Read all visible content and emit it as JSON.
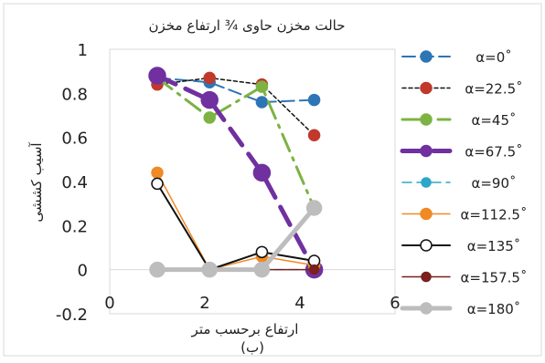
{
  "chart_data": {
    "type": "scatter",
    "title": "حالت مخزن حاوی ¾ ارتفاع مخزن",
    "xlabel": "ارتفاع برحسب متر",
    "ylabel": "آسیب کششی",
    "caption": "(ب)",
    "xlim": [
      0,
      6
    ],
    "ylim": [
      -0.2,
      1
    ],
    "xticks": [
      "0",
      "2",
      "4",
      "6"
    ],
    "yticks": [
      "-0.2",
      "0",
      "0.2",
      "0.4",
      "0.6",
      "0.8",
      "1"
    ],
    "grid": false,
    "legend_position": "right",
    "series": [
      {
        "name": "α=0˚",
        "color": "#2e75b6",
        "dash": "14,6",
        "width": 2,
        "marker_r": 6,
        "marker_fill": "#2e75b6",
        "x": [
          1.0,
          2.1,
          3.2,
          4.3
        ],
        "y": [
          0.87,
          0.85,
          0.76,
          0.77
        ]
      },
      {
        "name": "α=22.5˚",
        "color": "#c0392b",
        "line": "#111111",
        "dash": "4,3",
        "width": 1.5,
        "marker_r": 6,
        "marker_fill": "#c0392b",
        "x": [
          1.0,
          2.1,
          3.2,
          4.3
        ],
        "y": [
          0.84,
          0.87,
          0.84,
          0.61
        ]
      },
      {
        "name": "α=45˚",
        "color": "#7cb342",
        "dash": "20,8,3,8",
        "width": 3,
        "marker_r": 6,
        "marker_fill": "#7cb342",
        "x": [
          1.0,
          2.1,
          3.2,
          4.3
        ],
        "y": [
          0.87,
          0.69,
          0.83,
          0.28
        ]
      },
      {
        "name": "α=67.5˚",
        "color": "#7030a0",
        "dash": "22,12",
        "width": 5,
        "marker_r": 9,
        "marker_fill": "#7030a0",
        "x": [
          1.0,
          2.1,
          3.2,
          4.3
        ],
        "y": [
          0.88,
          0.77,
          0.44,
          0.0
        ]
      },
      {
        "name": "α=90˚",
        "color": "#2aa7c9",
        "dash": "10,6",
        "width": 1.5,
        "marker_r": 5,
        "marker_fill": "#2aa7c9",
        "x": [
          1.0,
          2.1,
          3.2,
          4.3
        ],
        "y": [
          0.0,
          0.0,
          0.0,
          0.0
        ]
      },
      {
        "name": "α=112.5˚",
        "color": "#f08a24",
        "dash": "",
        "width": 1.5,
        "marker_r": 6,
        "marker_fill": "#f08a24",
        "x": [
          1.0,
          2.1,
          3.2,
          4.3
        ],
        "y": [
          0.44,
          0.0,
          0.06,
          0.02
        ]
      },
      {
        "name": "α=135˚",
        "color": "#111111",
        "dash": "",
        "width": 2,
        "marker_r": 6,
        "marker_fill": "#ffffff",
        "x": [
          1.0,
          2.1,
          3.2,
          4.3
        ],
        "y": [
          0.39,
          0.0,
          0.08,
          0.04
        ]
      },
      {
        "name": "α=157.5˚",
        "color": "#7b1f1f",
        "dash": "",
        "width": 1.5,
        "marker_r": 5,
        "marker_fill": "#7b1f1f",
        "x": [
          1.0,
          2.1,
          3.2,
          4.3
        ],
        "y": [
          0.0,
          0.0,
          0.0,
          0.0
        ]
      },
      {
        "name": "α=180˚",
        "color": "#bdbdbd",
        "dash": "",
        "width": 5,
        "marker_r": 8,
        "marker_fill": "#bdbdbd",
        "x": [
          1.0,
          2.1,
          3.2,
          4.3
        ],
        "y": [
          0.0,
          0.0,
          0.0,
          0.28
        ]
      }
    ]
  }
}
